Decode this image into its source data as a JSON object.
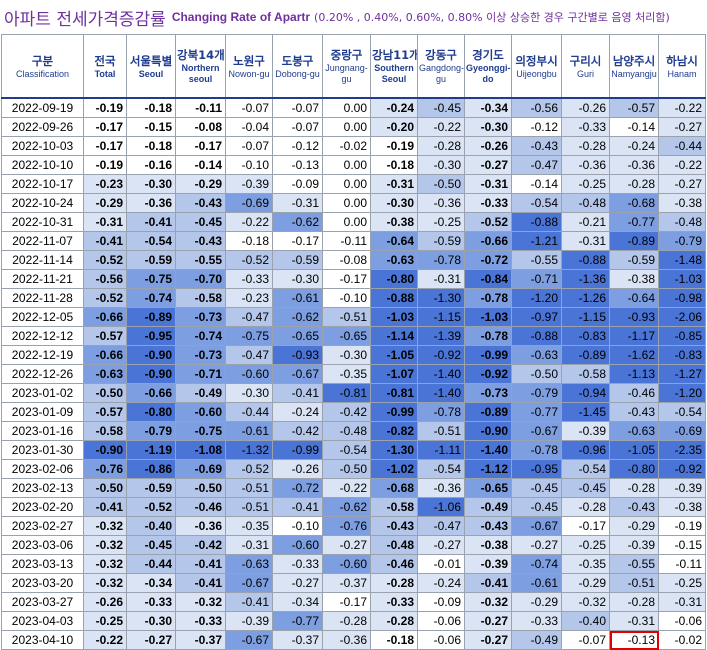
{
  "title": {
    "korean": "아파트 전세가격증감률",
    "english": "Changing Rate of Apartr",
    "note": "(0.20% , 0.40%, 0.60%, 0.80% 이상 상승한 경우 구간별로 음영 처리함)"
  },
  "columns": [
    {
      "ko": "구분",
      "en": "Classification",
      "bold": false
    },
    {
      "ko": "전국",
      "en": "Total",
      "bold": true
    },
    {
      "ko": "서울특별",
      "en": "Seoul",
      "bold": true
    },
    {
      "ko": "강북14개",
      "en": "Northern seoul",
      "bold": true
    },
    {
      "ko": "노원구",
      "en": "Nowon-gu",
      "bold": false
    },
    {
      "ko": "도봉구",
      "en": "Dobong-gu",
      "bold": false
    },
    {
      "ko": "중랑구",
      "en": "Jungnang-gu",
      "bold": false
    },
    {
      "ko": "강남11개",
      "en": "Southern Seoul",
      "bold": true
    },
    {
      "ko": "강동구",
      "en": "Gangdong-gu",
      "bold": false
    },
    {
      "ko": "경기도",
      "en": "Gyeonggi-do",
      "bold": true
    },
    {
      "ko": "의정부시",
      "en": "Uijeongbu",
      "bold": false
    },
    {
      "ko": "구리시",
      "en": "Guri",
      "bold": false
    },
    {
      "ko": "남양주시",
      "en": "Namyangju",
      "bold": false
    },
    {
      "ko": "하남시",
      "en": "Hanam",
      "bold": false
    }
  ],
  "rows": [
    {
      "date": "2022-09-19",
      "values": [
        "-0.19",
        "-0.18",
        "-0.11",
        "-0.07",
        "-0.07",
        "0.00",
        "-0.24",
        "-0.45",
        "-0.34",
        "-0.56",
        "-0.26",
        "-0.57",
        "-0.22"
      ]
    },
    {
      "date": "2022-09-26",
      "values": [
        "-0.17",
        "-0.15",
        "-0.08",
        "-0.04",
        "-0.07",
        "0.00",
        "-0.20",
        "-0.22",
        "-0.30",
        "-0.12",
        "-0.33",
        "-0.14",
        "-0.27"
      ]
    },
    {
      "date": "2022-10-03",
      "values": [
        "-0.17",
        "-0.18",
        "-0.17",
        "-0.07",
        "-0.12",
        "-0.02",
        "-0.19",
        "-0.28",
        "-0.26",
        "-0.43",
        "-0.28",
        "-0.24",
        "-0.44"
      ]
    },
    {
      "date": "2022-10-10",
      "values": [
        "-0.19",
        "-0.16",
        "-0.14",
        "-0.10",
        "-0.13",
        "0.00",
        "-0.18",
        "-0.30",
        "-0.27",
        "-0.47",
        "-0.36",
        "-0.36",
        "-0.22"
      ]
    },
    {
      "date": "2022-10-17",
      "values": [
        "-0.23",
        "-0.30",
        "-0.29",
        "-0.39",
        "-0.09",
        "0.00",
        "-0.31",
        "-0.50",
        "-0.31",
        "-0.14",
        "-0.25",
        "-0.28",
        "-0.27"
      ]
    },
    {
      "date": "2022-10-24",
      "values": [
        "-0.29",
        "-0.36",
        "-0.43",
        "-0.69",
        "-0.31",
        "0.00",
        "-0.30",
        "-0.36",
        "-0.33",
        "-0.54",
        "-0.48",
        "-0.68",
        "-0.38"
      ]
    },
    {
      "date": "2022-10-31",
      "values": [
        "-0.31",
        "-0.41",
        "-0.45",
        "-0.22",
        "-0.62",
        "0.00",
        "-0.38",
        "-0.25",
        "-0.52",
        "-0.88",
        "-0.21",
        "-0.77",
        "-0.48"
      ]
    },
    {
      "date": "2022-11-07",
      "values": [
        "-0.41",
        "-0.54",
        "-0.43",
        "-0.18",
        "-0.17",
        "-0.11",
        "-0.64",
        "-0.59",
        "-0.66",
        "-1.21",
        "-0.31",
        "-0.89",
        "-0.79"
      ]
    },
    {
      "date": "2022-11-14",
      "values": [
        "-0.52",
        "-0.59",
        "-0.55",
        "-0.52",
        "-0.59",
        "-0.08",
        "-0.63",
        "-0.78",
        "-0.72",
        "-0.55",
        "-0.88",
        "-0.59",
        "-1.48"
      ]
    },
    {
      "date": "2022-11-21",
      "values": [
        "-0.56",
        "-0.75",
        "-0.70",
        "-0.33",
        "-0.30",
        "-0.17",
        "-0.80",
        "-0.31",
        "-0.84",
        "-0.71",
        "-1.36",
        "-0.38",
        "-1.03"
      ]
    },
    {
      "date": "2022-11-28",
      "values": [
        "-0.52",
        "-0.74",
        "-0.58",
        "-0.23",
        "-0.61",
        "-0.10",
        "-0.88",
        "-1.30",
        "-0.78",
        "-1.20",
        "-1.26",
        "-0.64",
        "-0.98"
      ]
    },
    {
      "date": "2022-12-05",
      "values": [
        "-0.66",
        "-0.89",
        "-0.73",
        "-0.47",
        "-0.62",
        "-0.51",
        "-1.03",
        "-1.15",
        "-1.03",
        "-0.97",
        "-1.15",
        "-0.93",
        "-2.06"
      ]
    },
    {
      "date": "2022-12-12",
      "values": [
        "-0.57",
        "-0.95",
        "-0.74",
        "-0.75",
        "-0.65",
        "-0.65",
        "-1.14",
        "-1.39",
        "-0.78",
        "-0.88",
        "-0.83",
        "-1.17",
        "-0.85"
      ]
    },
    {
      "date": "2022-12-19",
      "values": [
        "-0.66",
        "-0.90",
        "-0.73",
        "-0.47",
        "-0.93",
        "-0.30",
        "-1.05",
        "-0.92",
        "-0.99",
        "-0.63",
        "-0.89",
        "-1.62",
        "-0.83"
      ]
    },
    {
      "date": "2022-12-26",
      "values": [
        "-0.63",
        "-0.90",
        "-0.71",
        "-0.60",
        "-0.67",
        "-0.35",
        "-1.07",
        "-1.40",
        "-0.92",
        "-0.50",
        "-0.58",
        "-1.13",
        "-1.27"
      ]
    },
    {
      "date": "2023-01-02",
      "values": [
        "-0.50",
        "-0.66",
        "-0.49",
        "-0.30",
        "-0.41",
        "-0.81",
        "-0.81",
        "-1.40",
        "-0.73",
        "-0.79",
        "-0.94",
        "-0.46",
        "-1.20"
      ]
    },
    {
      "date": "2023-01-09",
      "values": [
        "-0.57",
        "-0.80",
        "-0.60",
        "-0.44",
        "-0.24",
        "-0.42",
        "-0.99",
        "-0.78",
        "-0.89",
        "-0.77",
        "-1.45",
        "-0.43",
        "-0.54"
      ]
    },
    {
      "date": "2023-01-16",
      "values": [
        "-0.58",
        "-0.79",
        "-0.75",
        "-0.61",
        "-0.42",
        "-0.48",
        "-0.82",
        "-0.51",
        "-0.90",
        "-0.67",
        "-0.39",
        "-0.63",
        "-0.69"
      ]
    },
    {
      "date": "2023-01-30",
      "values": [
        "-0.90",
        "-1.19",
        "-1.08",
        "-1.32",
        "-0.99",
        "-0.54",
        "-1.30",
        "-1.11",
        "-1.40",
        "-0.78",
        "-0.96",
        "-1.05",
        "-2.35"
      ]
    },
    {
      "date": "2023-02-06",
      "values": [
        "-0.76",
        "-0.86",
        "-0.69",
        "-0.52",
        "-0.26",
        "-0.50",
        "-1.02",
        "-0.54",
        "-1.12",
        "-0.95",
        "-0.54",
        "-0.80",
        "-0.92"
      ]
    },
    {
      "date": "2023-02-13",
      "values": [
        "-0.50",
        "-0.59",
        "-0.50",
        "-0.51",
        "-0.72",
        "-0.22",
        "-0.68",
        "-0.36",
        "-0.65",
        "-0.45",
        "-0.45",
        "-0.28",
        "-0.39"
      ]
    },
    {
      "date": "2023-02-20",
      "values": [
        "-0.41",
        "-0.52",
        "-0.46",
        "-0.51",
        "-0.41",
        "-0.62",
        "-0.58",
        "-1.06",
        "-0.49",
        "-0.45",
        "-0.28",
        "-0.43",
        "-0.38"
      ]
    },
    {
      "date": "2023-02-27",
      "values": [
        "-0.32",
        "-0.40",
        "-0.36",
        "-0.35",
        "-0.10",
        "-0.76",
        "-0.43",
        "-0.47",
        "-0.43",
        "-0.67",
        "-0.17",
        "-0.29",
        "-0.19"
      ]
    },
    {
      "date": "2023-03-06",
      "values": [
        "-0.32",
        "-0.45",
        "-0.42",
        "-0.31",
        "-0.60",
        "-0.27",
        "-0.48",
        "-0.27",
        "-0.38",
        "-0.27",
        "-0.25",
        "-0.39",
        "-0.15"
      ]
    },
    {
      "date": "2023-03-13",
      "values": [
        "-0.32",
        "-0.44",
        "-0.41",
        "-0.63",
        "-0.33",
        "-0.60",
        "-0.46",
        "-0.01",
        "-0.39",
        "-0.74",
        "-0.35",
        "-0.55",
        "-0.11"
      ]
    },
    {
      "date": "2023-03-20",
      "values": [
        "-0.32",
        "-0.34",
        "-0.41",
        "-0.67",
        "-0.27",
        "-0.37",
        "-0.28",
        "-0.24",
        "-0.41",
        "-0.61",
        "-0.29",
        "-0.51",
        "-0.25"
      ]
    },
    {
      "date": "2023-03-27",
      "values": [
        "-0.26",
        "-0.33",
        "-0.32",
        "-0.41",
        "-0.34",
        "-0.17",
        "-0.33",
        "-0.09",
        "-0.32",
        "-0.29",
        "-0.32",
        "-0.28",
        "-0.31"
      ]
    },
    {
      "date": "2023-04-03",
      "values": [
        "-0.25",
        "-0.30",
        "-0.33",
        "-0.39",
        "-0.77",
        "-0.28",
        "-0.28",
        "-0.06",
        "-0.27",
        "-0.33",
        "-0.40",
        "-0.31",
        "-0.06"
      ]
    },
    {
      "date": "2023-04-10",
      "values": [
        "-0.22",
        "-0.27",
        "-0.37",
        "-0.67",
        "-0.37",
        "-0.36",
        "-0.18",
        "-0.06",
        "-0.27",
        "-0.49",
        "-0.07",
        "-0.13",
        "-0.02"
      ]
    }
  ],
  "highlight": {
    "row": 28,
    "col": 11,
    "color": "#e00000"
  },
  "shading": {
    "thresholds": [
      0.2,
      0.4,
      0.6,
      0.8
    ],
    "colors": [
      "#ffffff",
      "#dbe4f4",
      "#b4c6ea",
      "#7d9ee0",
      "#4a74d6"
    ]
  }
}
